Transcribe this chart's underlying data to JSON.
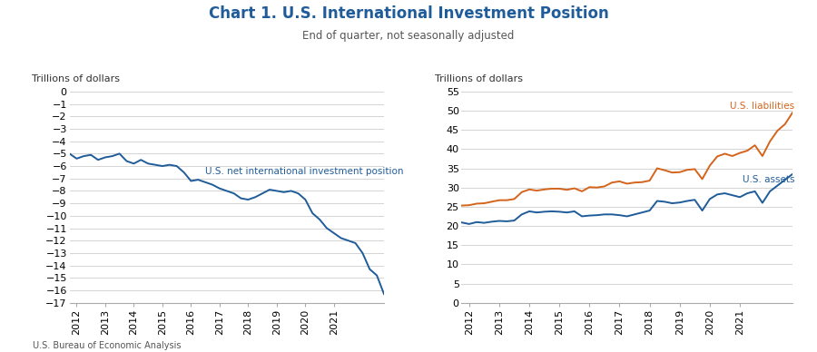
{
  "title": "Chart 1. U.S. International Investment Position",
  "subtitle": "End of quarter, not seasonally adjusted",
  "footer": "U.S. Bureau of Economic Analysis",
  "title_color": "#1F5C99",
  "subtitle_color": "#555555",
  "ylabel_left": "Trillions of dollars",
  "ylabel_right": "Trillions of dollars",
  "left_line_color": "#1F5C99",
  "assets_color": "#1F5C99",
  "liabilities_color": "#D4641C",
  "left_label": "U.S. net international investment position",
  "assets_label": "U.S. assets",
  "liabilities_label": "U.S. liabilities",
  "net_position": [
    -5.0,
    -5.4,
    -5.2,
    -5.1,
    -5.5,
    -5.3,
    -5.2,
    -5.0,
    -5.6,
    -5.8,
    -5.5,
    -5.8,
    -5.9,
    -6.0,
    -5.9,
    -6.0,
    -6.5,
    -7.2,
    -7.1,
    -7.3,
    -7.5,
    -7.8,
    -8.0,
    -8.2,
    -8.6,
    -8.7,
    -8.5,
    -8.2,
    -7.9,
    -8.0,
    -8.1,
    -8.0,
    -8.2,
    -8.7,
    -9.8,
    -10.3,
    -11.0,
    -11.4,
    -11.8,
    -12.0,
    -12.2,
    -13.0,
    -14.3,
    -14.8,
    -16.3
  ],
  "assets": [
    20.9,
    20.5,
    21.0,
    20.8,
    21.1,
    21.3,
    21.2,
    21.4,
    23.0,
    23.8,
    23.5,
    23.7,
    23.8,
    23.7,
    23.5,
    23.8,
    22.5,
    22.7,
    22.8,
    23.0,
    23.0,
    22.8,
    22.5,
    23.0,
    23.5,
    24.0,
    26.5,
    26.3,
    25.9,
    26.1,
    26.5,
    26.8,
    24.0,
    27.0,
    28.2,
    28.5,
    28.0,
    27.5,
    28.5,
    29.0,
    26.0,
    29.0,
    30.5,
    32.0,
    33.5
  ],
  "liabilities": [
    25.3,
    25.4,
    25.8,
    25.9,
    26.3,
    26.7,
    26.7,
    27.0,
    28.8,
    29.5,
    29.2,
    29.5,
    29.7,
    29.7,
    29.4,
    29.8,
    29.0,
    30.1,
    30.0,
    30.3,
    31.3,
    31.6,
    31.0,
    31.3,
    31.4,
    31.8,
    35.0,
    34.5,
    33.9,
    34.0,
    34.6,
    34.8,
    32.2,
    35.7,
    38.1,
    38.8,
    38.2,
    39.0,
    39.6,
    41.0,
    38.2,
    42.0,
    44.8,
    46.5,
    49.5
  ],
  "left_ylim": [
    -17,
    0
  ],
  "left_yticks": [
    0,
    -1,
    -2,
    -3,
    -4,
    -5,
    -6,
    -7,
    -8,
    -9,
    -10,
    -11,
    -12,
    -13,
    -14,
    -15,
    -16,
    -17
  ],
  "right_ylim": [
    0,
    55
  ],
  "right_yticks": [
    0,
    5,
    10,
    15,
    20,
    25,
    30,
    35,
    40,
    45,
    50,
    55
  ],
  "x_tick_years": [
    "2012",
    "2013",
    "2014",
    "2015",
    "2016",
    "2017",
    "2018",
    "2019",
    "2020",
    "2021"
  ],
  "bg_color": "#FFFFFF",
  "grid_color": "#CCCCCC"
}
